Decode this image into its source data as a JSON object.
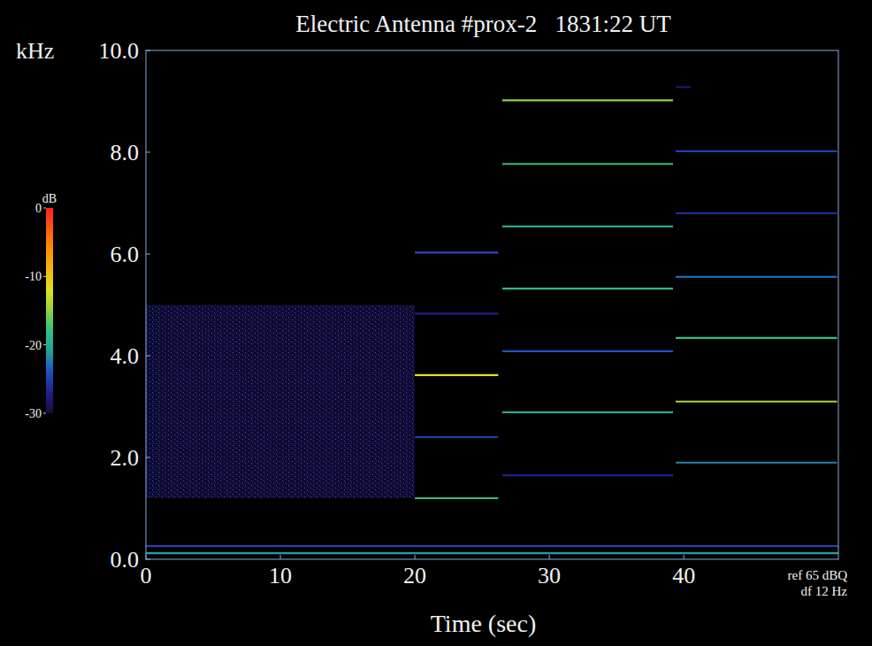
{
  "chart_data": {
    "type": "spectrogram",
    "title": "Electric Antenna #prox-2   1831:22 UT",
    "x_label": "Time (sec)",
    "y_label": "kHz",
    "xlim": [
      0,
      51.5
    ],
    "xticks": [
      0,
      10,
      20,
      30,
      40
    ],
    "ylim": [
      0,
      10
    ],
    "yticks": [
      {
        "value": 0,
        "label": "0.0"
      },
      {
        "value": 2,
        "label": "2.0"
      },
      {
        "value": 4,
        "label": "4.0"
      },
      {
        "value": 6,
        "label": "6.0"
      },
      {
        "value": 8,
        "label": "8.0"
      },
      {
        "value": 10,
        "label": "10.0"
      }
    ],
    "grid": false,
    "colorbar": {
      "label": "dB",
      "range": [
        -30,
        0
      ],
      "ticks": [
        0,
        -10,
        -20,
        -30
      ]
    },
    "annotations": [
      "ref 65 dBQ",
      "df 12 Hz"
    ],
    "noise": {
      "start": 0,
      "end": 20.0,
      "f_low": 1.2,
      "f_high": 5.0,
      "db": -28
    },
    "tones": [
      {
        "start": 20.0,
        "end": 26.2,
        "freq": 1.2,
        "db": -18
      },
      {
        "start": 20.0,
        "end": 26.2,
        "freq": 2.4,
        "db": -25
      },
      {
        "start": 20.0,
        "end": 26.2,
        "freq": 3.62,
        "db": -12
      },
      {
        "start": 20.0,
        "end": 26.2,
        "freq": 4.83,
        "db": -27
      },
      {
        "start": 20.0,
        "end": 26.2,
        "freq": 6.03,
        "db": -24
      },
      {
        "start": 26.5,
        "end": 39.2,
        "freq": 1.65,
        "db": -27
      },
      {
        "start": 26.5,
        "end": 39.2,
        "freq": 2.89,
        "db": -20
      },
      {
        "start": 26.5,
        "end": 39.2,
        "freq": 4.09,
        "db": -24
      },
      {
        "start": 26.5,
        "end": 39.2,
        "freq": 5.32,
        "db": -19
      },
      {
        "start": 26.5,
        "end": 39.2,
        "freq": 6.54,
        "db": -20
      },
      {
        "start": 26.5,
        "end": 39.2,
        "freq": 7.77,
        "db": -18
      },
      {
        "start": 26.5,
        "end": 39.2,
        "freq": 9.02,
        "db": -15
      },
      {
        "start": 39.4,
        "end": 51.4,
        "freq": 1.9,
        "db": -22
      },
      {
        "start": 39.4,
        "end": 51.4,
        "freq": 3.1,
        "db": -14
      },
      {
        "start": 39.4,
        "end": 51.4,
        "freq": 4.35,
        "db": -18
      },
      {
        "start": 39.4,
        "end": 51.4,
        "freq": 5.55,
        "db": -23
      },
      {
        "start": 39.4,
        "end": 51.4,
        "freq": 6.8,
        "db": -26
      },
      {
        "start": 39.4,
        "end": 51.4,
        "freq": 8.02,
        "db": -25
      },
      {
        "start": 39.4,
        "end": 40.5,
        "freq": 9.28,
        "db": -28
      },
      {
        "start": 0,
        "end": 51.5,
        "freq": 0.12,
        "db": -21
      },
      {
        "start": 0,
        "end": 51.5,
        "freq": 0.26,
        "db": -25
      }
    ]
  }
}
